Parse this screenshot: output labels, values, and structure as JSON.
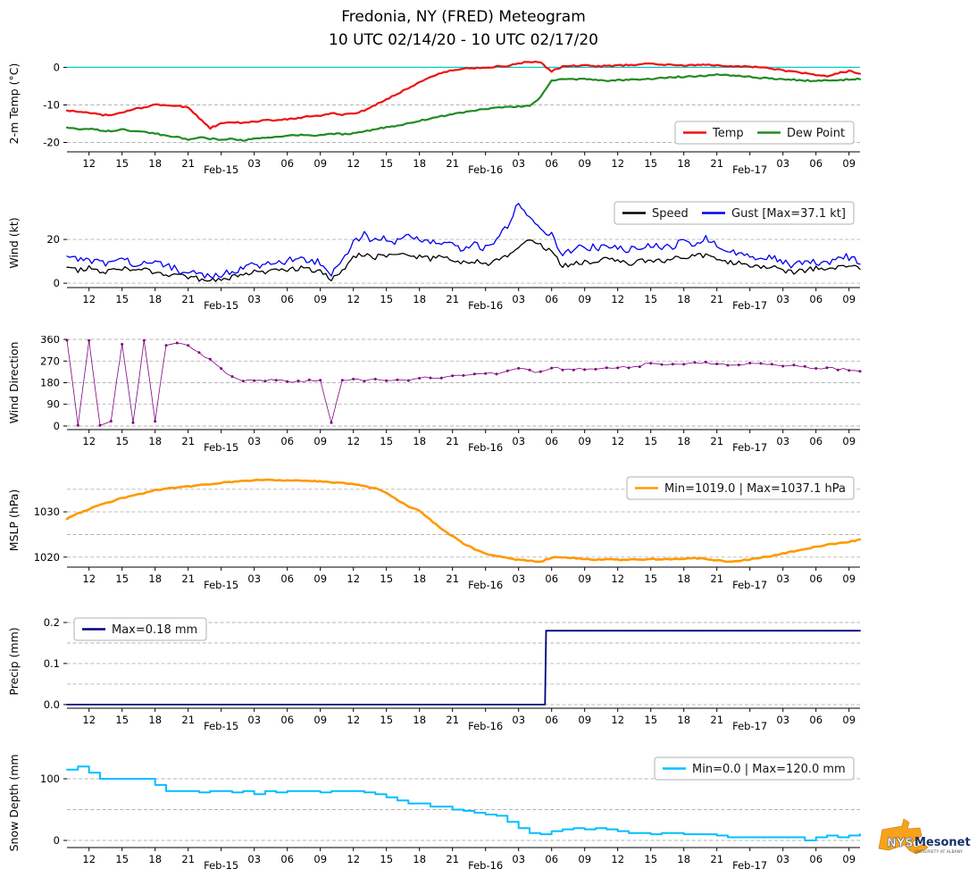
{
  "title": {
    "line1": "Fredonia, NY (FRED) Meteogram",
    "line2": "10 UTC 02/14/20 - 10 UTC 02/17/20"
  },
  "logo": {
    "nys": "NYS",
    "mesonet": "Mesonet",
    "tagline": "UNIVERSITY AT ALBANY"
  },
  "chart_data": {
    "type": "line",
    "x_range": [
      10,
      82
    ],
    "x_step": 1,
    "x_unit": "hours since 02/14/20 00 UTC",
    "x_ticks": [
      {
        "h": 12,
        "label": "12"
      },
      {
        "h": 15,
        "label": "15"
      },
      {
        "h": 18,
        "label": "18"
      },
      {
        "h": 21,
        "label": "21"
      },
      {
        "h": 24,
        "label": "Feb-15",
        "day": true
      },
      {
        "h": 27,
        "label": "03"
      },
      {
        "h": 30,
        "label": "06"
      },
      {
        "h": 33,
        "label": "09"
      },
      {
        "h": 36,
        "label": "12"
      },
      {
        "h": 39,
        "label": "15"
      },
      {
        "h": 42,
        "label": "18"
      },
      {
        "h": 45,
        "label": "21"
      },
      {
        "h": 48,
        "label": "Feb-16",
        "day": true
      },
      {
        "h": 51,
        "label": "03"
      },
      {
        "h": 54,
        "label": "06"
      },
      {
        "h": 57,
        "label": "09"
      },
      {
        "h": 60,
        "label": "12"
      },
      {
        "h": 63,
        "label": "15"
      },
      {
        "h": 66,
        "label": "18"
      },
      {
        "h": 69,
        "label": "21"
      },
      {
        "h": 72,
        "label": "Feb-17",
        "day": true
      },
      {
        "h": 75,
        "label": "03"
      },
      {
        "h": 78,
        "label": "06"
      },
      {
        "h": 81,
        "label": "09"
      }
    ],
    "panels": [
      {
        "id": "temp",
        "ylabel": "2-m Temp (°C)",
        "ylim": [
          -22.5,
          3.2
        ],
        "yticks": [
          0,
          -10,
          -20
        ],
        "grid": [
          0,
          -10,
          -20
        ],
        "refline": {
          "y": 0,
          "color": "#00cccc"
        },
        "series": [
          {
            "name": "Temp",
            "color": "#ee1111",
            "lw": 2.2,
            "jitter": 0.18,
            "values": [
              -11.5,
              -11.8,
              -12,
              -12.6,
              -12.8,
              -12,
              -11.2,
              -10.6,
              -10,
              -10,
              -10.3,
              -10.6,
              -13.5,
              -16.2,
              -15,
              -14.6,
              -14.8,
              -14.5,
              -14,
              -14.2,
              -13.8,
              -13.5,
              -13,
              -12.8,
              -12.2,
              -12.6,
              -12.4,
              -11.5,
              -10,
              -8.5,
              -7,
              -5.5,
              -4,
              -2.5,
              -1.5,
              -0.8,
              -0.3,
              -0.2,
              0,
              0.2,
              0.4,
              1,
              1.5,
              1.2,
              -1,
              0.2,
              0.4,
              0.5,
              0.3,
              0.4,
              0.5,
              0.6,
              0.8,
              1,
              0.8,
              0.6,
              0.5,
              0.6,
              0.7,
              0.6,
              0.4,
              0.3,
              0.2,
              0,
              -0.3,
              -0.8,
              -1.2,
              -1.6,
              -2,
              -2.4,
              -1.5,
              -1,
              -1.6
            ]
          },
          {
            "name": "Dew Point",
            "color": "#228b22",
            "lw": 2.2,
            "jitter": 0.18,
            "values": [
              -16,
              -16.5,
              -16.3,
              -16.8,
              -17,
              -16.6,
              -16.9,
              -17.2,
              -17.6,
              -18.2,
              -18.6,
              -19.2,
              -18.6,
              -19,
              -19.3,
              -19,
              -19.4,
              -19.1,
              -18.8,
              -18.5,
              -18.3,
              -18,
              -18.2,
              -18,
              -17.6,
              -17.8,
              -17.5,
              -17,
              -16.5,
              -16,
              -15.5,
              -15,
              -14.2,
              -13.6,
              -13,
              -12.5,
              -12,
              -11.5,
              -11,
              -10.8,
              -10.6,
              -10.4,
              -10.2,
              -8,
              -3.5,
              -3,
              -3.2,
              -3.1,
              -3.3,
              -3.5,
              -3.4,
              -3.3,
              -3.2,
              -3,
              -2.8,
              -2.6,
              -2.5,
              -2.4,
              -2.2,
              -1.8,
              -2,
              -2.3,
              -2.5,
              -2.8,
              -3,
              -3.2,
              -3.3,
              -3.5,
              -3.6,
              -3.5,
              -3.4,
              -3.2,
              -3
            ]
          }
        ],
        "legend": {
          "loc": "lower right",
          "items": [
            {
              "label": "Temp",
              "color": "#ee1111"
            },
            {
              "label": "Dew Point",
              "color": "#228b22"
            }
          ]
        }
      },
      {
        "id": "wind",
        "ylabel": "Wind (kt)",
        "ylim": [
          -2,
          38.8
        ],
        "yticks": [
          0,
          20
        ],
        "grid": [
          0,
          20
        ],
        "series": [
          {
            "name": "Speed",
            "color": "#000000",
            "lw": 1.3,
            "jitter": 1.2,
            "clamp": [
              0,
              38
            ],
            "values": [
              7,
              6,
              7,
              5,
              6,
              7,
              5,
              6,
              5,
              4,
              3,
              3,
              2,
              1,
              1.5,
              3,
              4,
              5,
              5,
              6,
              6,
              7,
              6,
              6,
              2,
              5,
              12,
              13,
              12,
              13,
              12,
              13,
              12,
              11,
              12,
              10,
              9,
              10,
              9,
              10,
              13,
              17,
              20,
              18,
              14,
              8,
              9,
              10,
              10,
              11,
              10,
              9,
              10,
              11,
              10,
              11,
              12,
              12,
              13,
              11,
              10,
              9,
              8,
              7,
              8,
              6,
              5,
              6,
              7,
              6,
              7,
              8,
              7
            ]
          },
          {
            "name": "Gust [Max=37.1 kt]",
            "color": "#0000ee",
            "lw": 1.3,
            "jitter": 1.8,
            "clamp": [
              0,
              37.1
            ],
            "values": [
              12,
              10,
              11,
              9,
              10,
              11,
              9,
              10,
              9,
              8,
              6,
              5,
              4,
              3,
              3.5,
              6,
              7,
              8,
              9,
              10,
              10,
              11,
              10,
              10,
              4,
              9,
              20,
              22,
              19,
              21,
              19,
              22,
              20,
              18,
              19,
              17,
              15,
              18,
              16,
              20,
              26,
              37.1,
              30,
              26,
              22,
              14,
              15,
              17,
              16,
              18,
              16,
              15,
              16,
              18,
              16,
              17,
              19,
              18,
              20,
              17,
              15,
              14,
              12,
              11,
              12,
              10,
              8,
              9,
              10,
              9,
              11,
              12,
              10
            ]
          }
        ],
        "legend": {
          "loc": "upper right",
          "items": [
            {
              "label": "Speed",
              "color": "#000000"
            },
            {
              "label": "Gust [Max=37.1 kt]",
              "color": "#0000ee"
            }
          ]
        }
      },
      {
        "id": "wdir",
        "ylabel": "Wind Direction",
        "ylim": [
          -15,
          375
        ],
        "yticks": [
          0,
          90,
          180,
          270,
          360
        ],
        "grid": [
          0,
          90,
          180,
          270,
          360
        ],
        "series": [
          {
            "name": "Wind Direction",
            "color": "#800080",
            "lw": 0.8,
            "jitter": 6,
            "clamp": [
              0,
              360
            ],
            "marker": true,
            "upsample": 2,
            "values": [
              355,
              8,
              350,
              5,
              15,
              345,
              10,
              355,
              20,
              340,
              350,
              330,
              300,
              275,
              235,
              205,
              192,
              186,
              190,
              188,
              185,
              190,
              188,
              186,
              15,
              185,
              190,
              192,
              190,
              188,
              192,
              195,
              198,
              200,
              205,
              210,
              208,
              212,
              215,
              220,
              228,
              235,
              230,
              226,
              240,
              238,
              236,
              240,
              238,
              242,
              240,
              245,
              252,
              266,
              260,
              256,
              258,
              262,
              260,
              258,
              256,
              256,
              258,
              255,
              252,
              250,
              248,
              246,
              243,
              240,
              238,
              236,
              233
            ]
          }
        ]
      },
      {
        "id": "mslp",
        "ylabel": "MSLP (hPa)",
        "ylim": [
          1017.8,
          1038.5
        ],
        "yticks": [
          1030,
          1020
        ],
        "grid": [
          1020,
          1025,
          1030,
          1035
        ],
        "series": [
          {
            "name": "Min=1019.0 | Max=1037.1 hPa",
            "color": "#ff9900",
            "lw": 2.6,
            "jitter": 0.12,
            "clamp": [
              1019,
              1037.1
            ],
            "values": [
              1028.5,
              1029.6,
              1030.6,
              1031.6,
              1032.3,
              1033,
              1033.6,
              1034.1,
              1034.8,
              1035.1,
              1035.3,
              1035.6,
              1035.9,
              1036.1,
              1036.4,
              1036.6,
              1036.8,
              1037,
              1037.1,
              1037,
              1036.9,
              1037,
              1036.8,
              1036.7,
              1036.5,
              1036.4,
              1036.1,
              1035.7,
              1035.2,
              1034.2,
              1032.6,
              1031.2,
              1030.2,
              1028.2,
              1026.2,
              1024.6,
              1023,
              1021.8,
              1020.8,
              1020.2,
              1019.8,
              1019.4,
              1019.2,
              1019,
              1019.9,
              1020,
              1019.8,
              1019.6,
              1019.5,
              1019.5,
              1019.4,
              1019.5,
              1019.4,
              1019.6,
              1019.5,
              1019.6,
              1019.7,
              1019.8,
              1019.6,
              1019.3,
              1019,
              1019.2,
              1019.5,
              1019.9,
              1020.3,
              1020.8,
              1021.3,
              1021.8,
              1022.3,
              1022.7,
              1023.1,
              1023.4,
              1023.8
            ]
          }
        ],
        "legend": {
          "loc": "upper right",
          "items": [
            {
              "label": "Min=1019.0 | Max=1037.1 hPa",
              "color": "#ff9900"
            }
          ]
        }
      },
      {
        "id": "precip",
        "ylabel": "Precip (mm)",
        "ylim": [
          -0.009,
          0.2196
        ],
        "yticks": [
          0.2,
          0.1,
          0.0
        ],
        "ytick_labels": [
          "0.2",
          "0.1",
          "0.0"
        ],
        "grid": [
          0,
          0.05,
          0.1,
          0.15,
          0.2
        ],
        "series": [
          {
            "name": "Max=0.18 mm",
            "color": "#000080",
            "lw": 1.8,
            "x": [
              10,
              53.4,
              53.5,
              82
            ],
            "y": [
              0,
              0,
              0.18,
              0.18
            ]
          }
        ],
        "legend": {
          "loc": "upper left",
          "items": [
            {
              "label": "Max=0.18 mm",
              "color": "#000080"
            }
          ]
        }
      },
      {
        "id": "snow",
        "ylabel": "Snow Depth (mm)",
        "ylim": [
          -11.6,
          140.6
        ],
        "yticks": [
          100,
          0
        ],
        "grid": [
          0,
          50,
          100
        ],
        "series": [
          {
            "name": "Min=0.0 | Max=120.0 mm",
            "color": "#00bfff",
            "lw": 2.0,
            "interp": "step",
            "clamp": [
              0,
              120
            ],
            "values": [
              115,
              120,
              110,
              100,
              100,
              100,
              100,
              100,
              90,
              80,
              80,
              80,
              78,
              80,
              80,
              78,
              80,
              75,
              80,
              78,
              80,
              80,
              80,
              78,
              80,
              80,
              80,
              78,
              75,
              70,
              65,
              60,
              60,
              55,
              55,
              50,
              48,
              45,
              42,
              40,
              30,
              20,
              12,
              10,
              15,
              18,
              20,
              18,
              20,
              18,
              15,
              12,
              12,
              10,
              12,
              12,
              10,
              10,
              10,
              8,
              5,
              5,
              5,
              5,
              5,
              5,
              5,
              0,
              5,
              8,
              5,
              8,
              10
            ]
          }
        ],
        "legend": {
          "loc": "upper right",
          "items": [
            {
              "label": "Min=0.0 | Max=120.0 mm",
              "color": "#00bfff"
            }
          ]
        }
      }
    ]
  }
}
